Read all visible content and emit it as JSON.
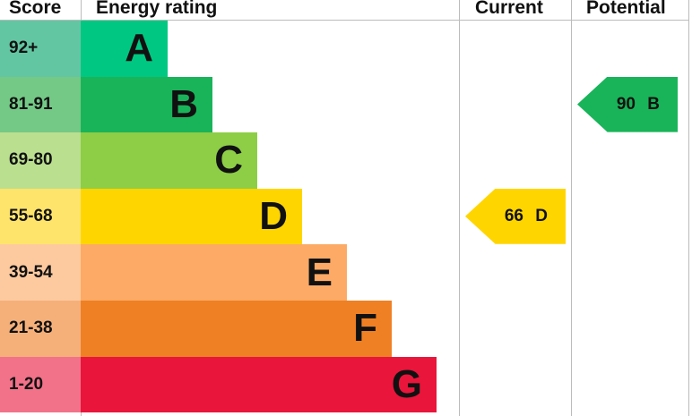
{
  "chart_data": {
    "type": "bar",
    "headers": {
      "score": "Score",
      "rating": "Energy rating",
      "current": "Current",
      "potential": "Potential"
    },
    "bands": [
      {
        "score": "92+",
        "letter": "A",
        "color": "#00c781",
        "score_color": "#63c6a3"
      },
      {
        "score": "81-91",
        "letter": "B",
        "color": "#19b459",
        "score_color": "#74c986"
      },
      {
        "score": "69-80",
        "letter": "C",
        "color": "#8dce46",
        "score_color": "#badf8f"
      },
      {
        "score": "55-68",
        "letter": "D",
        "color": "#ffd500",
        "score_color": "#ffe46b"
      },
      {
        "score": "39-54",
        "letter": "E",
        "color": "#fcaa65",
        "score_color": "#fdca9f"
      },
      {
        "score": "21-38",
        "letter": "F",
        "color": "#ef8023",
        "score_color": "#f5b07a"
      },
      {
        "score": "1-20",
        "letter": "G",
        "color": "#e9153b",
        "score_color": "#f2728a"
      }
    ],
    "current": {
      "value": 66,
      "letter": "D",
      "label": "66 D",
      "color": "#ffd500"
    },
    "potential": {
      "value": 90,
      "letter": "B",
      "label": "90 B",
      "color": "#19b459"
    }
  }
}
